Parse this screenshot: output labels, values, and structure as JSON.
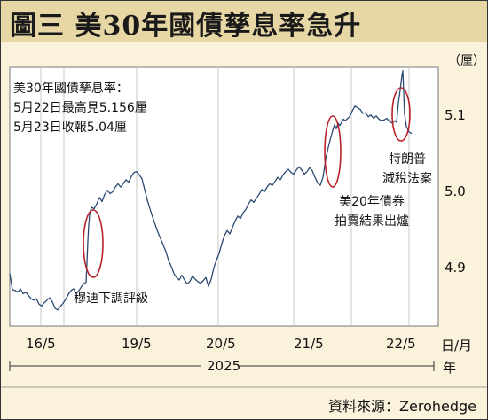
{
  "header": {
    "title": "圖三  美30年國債孳息率急升"
  },
  "notes": {
    "line1": "美30年國債孳息率：",
    "line2": "5月22日最高見5.156厘",
    "line3": "5月23日收報5.04厘"
  },
  "source": "資料來源：Zerohedge",
  "colors": {
    "line": "#2b4a72",
    "circle": "#b8202a",
    "title_bg": "#e7d7a4",
    "plot_bg": "#ffffff",
    "frame_bg": "#fbf2dc"
  },
  "chart_data": {
    "type": "line",
    "ylabel": "（厘）",
    "xunit": "日/月",
    "year": "2025",
    "yticks": [
      "4.9",
      "5.0",
      "5.1"
    ],
    "ylim": [
      4.84,
      5.16
    ],
    "xticks": [
      "16/5",
      "19/5",
      "20/5",
      "21/5",
      "22/5"
    ],
    "grid": "vertical",
    "series": [
      {
        "values": [
          [
            0,
            4.905
          ],
          [
            3,
            4.885
          ],
          [
            6,
            4.884
          ],
          [
            9,
            4.882
          ],
          [
            12,
            4.886
          ],
          [
            15,
            4.88
          ],
          [
            18,
            4.882
          ],
          [
            21,
            4.878
          ],
          [
            24,
            4.874
          ],
          [
            27,
            4.872
          ],
          [
            30,
            4.874
          ],
          [
            33,
            4.867
          ],
          [
            36,
            4.865
          ],
          [
            39,
            4.869
          ],
          [
            42,
            4.872
          ],
          [
            45,
            4.875
          ],
          [
            48,
            4.87
          ],
          [
            51,
            4.862
          ],
          [
            54,
            4.86
          ],
          [
            57,
            4.864
          ],
          [
            60,
            4.868
          ],
          [
            63,
            4.873
          ],
          [
            66,
            4.879
          ],
          [
            69,
            4.884
          ],
          [
            72,
            4.886
          ],
          [
            75,
            4.88
          ],
          [
            78,
            4.884
          ],
          [
            81,
            4.889
          ],
          [
            84,
            4.893
          ],
          [
            86,
            4.894
          ],
          [
            87,
            4.918
          ],
          [
            88,
            4.945
          ],
          [
            89,
            4.965
          ],
          [
            90,
            4.978
          ],
          [
            92,
            4.987
          ],
          [
            95,
            4.985
          ],
          [
            98,
            4.991
          ],
          [
            101,
            4.999
          ],
          [
            104,
            4.994
          ],
          [
            107,
            5.003
          ],
          [
            110,
            5.008
          ],
          [
            113,
            5.004
          ],
          [
            116,
            5.006
          ],
          [
            119,
            5.012
          ],
          [
            122,
            5.016
          ],
          [
            125,
            5.012
          ],
          [
            128,
            5.016
          ],
          [
            131,
            5.021
          ],
          [
            134,
            5.018
          ],
          [
            137,
            5.025
          ],
          [
            140,
            5.03
          ],
          [
            143,
            5.031
          ],
          [
            146,
            5.027
          ],
          [
            149,
            5.022
          ],
          [
            152,
            5.009
          ],
          [
            155,
            4.996
          ],
          [
            158,
            4.985
          ],
          [
            161,
            4.975
          ],
          [
            164,
            4.965
          ],
          [
            167,
            4.956
          ],
          [
            170,
            4.948
          ],
          [
            173,
            4.94
          ],
          [
            176,
            4.932
          ],
          [
            179,
            4.921
          ],
          [
            182,
            4.914
          ],
          [
            185,
            4.905
          ],
          [
            188,
            4.9
          ],
          [
            191,
            4.897
          ],
          [
            194,
            4.903
          ],
          [
            197,
            4.897
          ],
          [
            200,
            4.892
          ],
          [
            203,
            4.895
          ],
          [
            206,
            4.902
          ],
          [
            209,
            4.898
          ],
          [
            212,
            4.895
          ],
          [
            215,
            4.893
          ],
          [
            218,
            4.896
          ],
          [
            221,
            4.9
          ],
          [
            224,
            4.889
          ],
          [
            227,
            4.898
          ],
          [
            230,
            4.912
          ],
          [
            233,
            4.922
          ],
          [
            236,
            4.93
          ],
          [
            239,
            4.942
          ],
          [
            242,
            4.952
          ],
          [
            245,
            4.958
          ],
          [
            248,
            4.954
          ],
          [
            251,
            4.962
          ],
          [
            254,
            4.97
          ],
          [
            257,
            4.976
          ],
          [
            260,
            4.973
          ],
          [
            263,
            4.98
          ],
          [
            266,
            4.984
          ],
          [
            269,
            4.991
          ],
          [
            272,
            4.996
          ],
          [
            275,
            4.993
          ],
          [
            278,
            4.998
          ],
          [
            281,
            5.003
          ],
          [
            284,
            5.009
          ],
          [
            287,
            5.006
          ],
          [
            290,
            5.012
          ],
          [
            293,
            5.016
          ],
          [
            296,
            5.014
          ],
          [
            299,
            5.019
          ],
          [
            302,
            5.024
          ],
          [
            305,
            5.021
          ],
          [
            308,
            5.027
          ],
          [
            311,
            5.031
          ],
          [
            314,
            5.034
          ],
          [
            317,
            5.03
          ],
          [
            320,
            5.028
          ],
          [
            323,
            5.033
          ],
          [
            326,
            5.037
          ],
          [
            329,
            5.033
          ],
          [
            332,
            5.028
          ],
          [
            335,
            5.031
          ],
          [
            338,
            5.036
          ],
          [
            341,
            5.032
          ],
          [
            344,
            5.024
          ],
          [
            347,
            5.017
          ],
          [
            350,
            5.014
          ],
          [
            353,
            5.024
          ],
          [
            356,
            5.046
          ],
          [
            359,
            5.061
          ],
          [
            362,
            5.074
          ],
          [
            364,
            5.082
          ],
          [
            366,
            5.089
          ],
          [
            368,
            5.084
          ],
          [
            370,
            5.091
          ],
          [
            372,
            5.088
          ],
          [
            374,
            5.092
          ],
          [
            376,
            5.096
          ],
          [
            378,
            5.094
          ],
          [
            381,
            5.097
          ],
          [
            383,
            5.099
          ],
          [
            386,
            5.106
          ],
          [
            389,
            5.112
          ],
          [
            392,
            5.11
          ],
          [
            395,
            5.108
          ],
          [
            398,
            5.103
          ],
          [
            401,
            5.104
          ],
          [
            404,
            5.099
          ],
          [
            407,
            5.101
          ],
          [
            410,
            5.097
          ],
          [
            413,
            5.1
          ],
          [
            416,
            5.096
          ],
          [
            419,
            5.094
          ],
          [
            422,
            5.095
          ],
          [
            425,
            5.097
          ],
          [
            428,
            5.093
          ],
          [
            431,
            5.091
          ],
          [
            434,
            5.094
          ],
          [
            436,
            5.092
          ],
          [
            438,
            5.116
          ],
          [
            440,
            5.132
          ],
          [
            442,
            5.15
          ],
          [
            443,
            5.156
          ],
          [
            444,
            5.128
          ],
          [
            445,
            5.102
          ],
          [
            447,
            5.087
          ],
          [
            450,
            5.08
          ],
          [
            453,
            5.078
          ]
        ]
      }
    ],
    "annotations": [
      {
        "label": "穆迪下調評級",
        "x": 88
      },
      {
        "label": "美20年債券\n拍賣結果出爐",
        "x": 356
      },
      {
        "label": "特朗普\n減稅法案",
        "x": 441
      }
    ]
  }
}
